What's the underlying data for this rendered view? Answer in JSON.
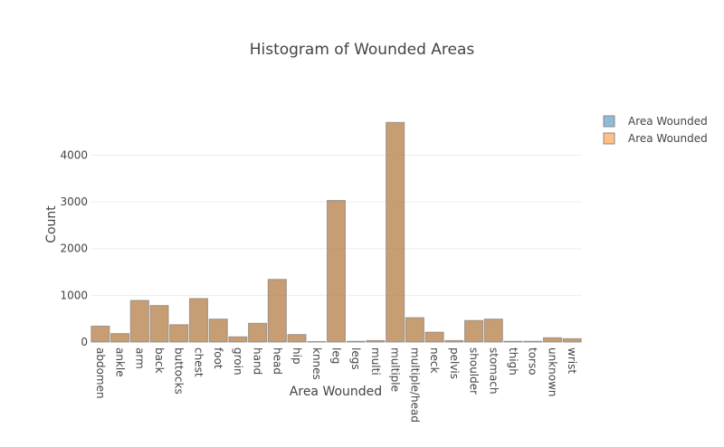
{
  "chart_data": {
    "type": "bar",
    "title": "Histogram of Wounded Areas",
    "xlabel": "Area Wounded",
    "ylabel": "Count",
    "ylim": [
      0,
      4900
    ],
    "yticks": [
      "0",
      "1000",
      "2000",
      "3000",
      "4000"
    ],
    "ytick_values": [
      0,
      1000,
      2000,
      3000,
      4000
    ],
    "grid": true,
    "legend_position": "top-right",
    "barmode": "overlay",
    "categories": [
      "abdomen",
      "ankle",
      "arm",
      "back",
      "buttocks",
      "chest",
      "foot",
      "groin",
      "hand",
      "head",
      "hip",
      "knnes",
      "leg",
      "legs",
      "multi",
      "multiple",
      "multiple/head",
      "neck",
      "pelvis",
      "shoulder",
      "stomach",
      "thigh",
      "torso",
      "unknown",
      "wrist"
    ],
    "series": [
      {
        "name": "Area Wounded",
        "color": "#1f77b4",
        "values": [
          340,
          180,
          890,
          780,
          370,
          930,
          490,
          110,
          400,
          1340,
          160,
          10,
          3030,
          15,
          30,
          4700,
          520,
          210,
          30,
          460,
          490,
          15,
          15,
          90,
          70
        ]
      },
      {
        "name": "Area Wounded",
        "color": "#ff7f0e",
        "values": [
          340,
          180,
          890,
          780,
          370,
          930,
          490,
          110,
          400,
          1340,
          160,
          10,
          3030,
          15,
          30,
          4700,
          520,
          210,
          30,
          460,
          490,
          15,
          15,
          90,
          70
        ]
      }
    ]
  }
}
